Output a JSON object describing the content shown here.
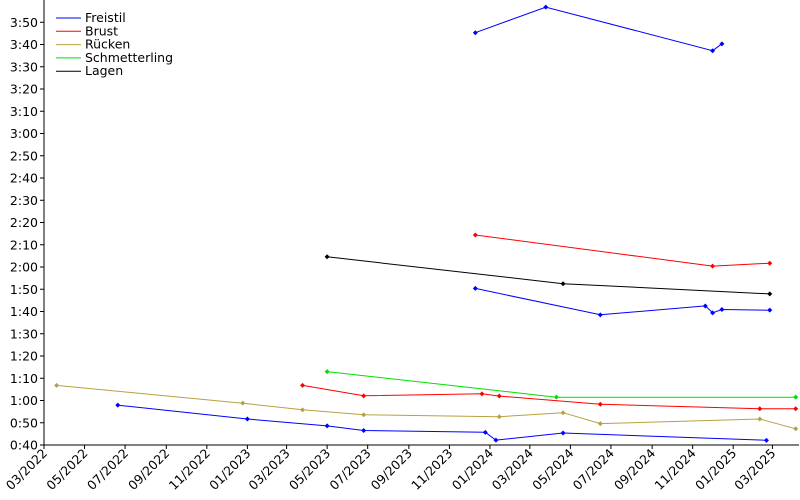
{
  "chart_data": {
    "type": "line",
    "title": "",
    "xlabel": "",
    "ylabel": "",
    "xlim": [
      "2022-03-01",
      "2025-04-10"
    ],
    "ylim": [
      40,
      240
    ],
    "grid": false,
    "legend_position": "top-left",
    "x_ticks": [
      {
        "date": "2022-03-01",
        "label": "03/2022"
      },
      {
        "date": "2022-05-01",
        "label": "05/2022"
      },
      {
        "date": "2022-07-01",
        "label": "07/2022"
      },
      {
        "date": "2022-09-01",
        "label": "09/2022"
      },
      {
        "date": "2022-11-01",
        "label": "11/2022"
      },
      {
        "date": "2023-01-01",
        "label": "01/2023"
      },
      {
        "date": "2023-03-01",
        "label": "03/2023"
      },
      {
        "date": "2023-05-01",
        "label": "05/2023"
      },
      {
        "date": "2023-07-01",
        "label": "07/2023"
      },
      {
        "date": "2023-09-01",
        "label": "09/2023"
      },
      {
        "date": "2023-11-01",
        "label": "11/2023"
      },
      {
        "date": "2024-01-01",
        "label": "01/2024"
      },
      {
        "date": "2024-03-01",
        "label": "03/2024"
      },
      {
        "date": "2024-05-01",
        "label": "05/2024"
      },
      {
        "date": "2024-07-01",
        "label": "07/2024"
      },
      {
        "date": "2024-09-01",
        "label": "09/2024"
      },
      {
        "date": "2024-11-01",
        "label": "11/2024"
      },
      {
        "date": "2025-01-01",
        "label": "01/2025"
      },
      {
        "date": "2025-03-01",
        "label": "03/2025"
      }
    ],
    "y_ticks": [
      {
        "value": 40,
        "label": "0:40"
      },
      {
        "value": 50,
        "label": "0:50"
      },
      {
        "value": 60,
        "label": "1:00"
      },
      {
        "value": 70,
        "label": "1:10"
      },
      {
        "value": 80,
        "label": "1:20"
      },
      {
        "value": 90,
        "label": "1:30"
      },
      {
        "value": 100,
        "label": "1:40"
      },
      {
        "value": 110,
        "label": "1:50"
      },
      {
        "value": 120,
        "label": "2:00"
      },
      {
        "value": 130,
        "label": "2:10"
      },
      {
        "value": 140,
        "label": "2:20"
      },
      {
        "value": 150,
        "label": "2:30"
      },
      {
        "value": 160,
        "label": "2:40"
      },
      {
        "value": 170,
        "label": "2:50"
      },
      {
        "value": 180,
        "label": "3:00"
      },
      {
        "value": 190,
        "label": "3:10"
      },
      {
        "value": 200,
        "label": "3:20"
      },
      {
        "value": 210,
        "label": "3:30"
      },
      {
        "value": 220,
        "label": "3:40"
      },
      {
        "value": 230,
        "label": "3:50"
      }
    ],
    "legend": [
      {
        "name": "Freistil",
        "color": "#0000ff"
      },
      {
        "name": "Brust",
        "color": "#ff0000"
      },
      {
        "name": "Rücken",
        "color": "#b8a040"
      },
      {
        "name": "Schmetterling",
        "color": "#00e000"
      },
      {
        "name": "Lagen",
        "color": "#000000"
      }
    ],
    "series": [
      {
        "color": "#0000ff",
        "points": [
          {
            "x": "2022-06-20",
            "y": 57.9
          },
          {
            "x": "2023-01-01",
            "y": 51.7
          },
          {
            "x": "2023-05-01",
            "y": 48.6
          },
          {
            "x": "2023-06-25",
            "y": 46.5
          },
          {
            "x": "2023-12-25",
            "y": 45.7
          },
          {
            "x": "2024-01-10",
            "y": 42.2
          },
          {
            "x": "2024-04-20",
            "y": 45.4
          },
          {
            "x": "2025-02-20",
            "y": 42.1
          }
        ]
      },
      {
        "color": "#0000ff",
        "points": [
          {
            "x": "2023-12-10",
            "y": 110.4
          },
          {
            "x": "2024-06-15",
            "y": 98.5
          },
          {
            "x": "2024-11-20",
            "y": 102.5
          },
          {
            "x": "2024-12-01",
            "y": 99.4
          },
          {
            "x": "2024-12-15",
            "y": 100.9
          },
          {
            "x": "2025-02-25",
            "y": 100.6
          }
        ]
      },
      {
        "color": "#0000ff",
        "points": [
          {
            "x": "2023-12-10",
            "y": 225.3
          },
          {
            "x": "2024-03-25",
            "y": 236.8
          },
          {
            "x": "2024-12-01",
            "y": 217.2
          },
          {
            "x": "2024-12-15",
            "y": 220.3
          }
        ]
      },
      {
        "color": "#ff0000",
        "points": [
          {
            "x": "2023-03-25",
            "y": 66.8
          },
          {
            "x": "2023-06-25",
            "y": 62.1
          },
          {
            "x": "2023-12-20",
            "y": 63.0
          },
          {
            "x": "2024-01-15",
            "y": 62.0
          },
          {
            "x": "2024-06-15",
            "y": 58.3
          },
          {
            "x": "2025-02-10",
            "y": 56.3
          },
          {
            "x": "2025-04-05",
            "y": 56.3
          }
        ]
      },
      {
        "color": "#ff0000",
        "points": [
          {
            "x": "2023-12-10",
            "y": 134.4
          },
          {
            "x": "2024-12-01",
            "y": 120.4
          },
          {
            "x": "2025-02-25",
            "y": 121.7
          }
        ]
      },
      {
        "color": "#b8a040",
        "points": [
          {
            "x": "2022-03-20",
            "y": 66.8
          },
          {
            "x": "2022-12-25",
            "y": 58.8
          },
          {
            "x": "2023-03-25",
            "y": 55.8
          },
          {
            "x": "2023-06-25",
            "y": 53.6
          },
          {
            "x": "2024-01-15",
            "y": 52.7
          },
          {
            "x": "2024-04-20",
            "y": 54.5
          },
          {
            "x": "2024-06-15",
            "y": 49.6
          },
          {
            "x": "2025-02-10",
            "y": 51.7
          },
          {
            "x": "2025-04-05",
            "y": 47.3
          }
        ]
      },
      {
        "color": "#00e000",
        "points": [
          {
            "x": "2023-05-01",
            "y": 73.0
          },
          {
            "x": "2024-04-10",
            "y": 61.5
          },
          {
            "x": "2025-04-05",
            "y": 61.5
          }
        ]
      },
      {
        "color": "#000000",
        "points": [
          {
            "x": "2023-05-01",
            "y": 124.6
          },
          {
            "x": "2024-04-20",
            "y": 112.5
          },
          {
            "x": "2025-02-25",
            "y": 107.9
          }
        ]
      }
    ]
  }
}
